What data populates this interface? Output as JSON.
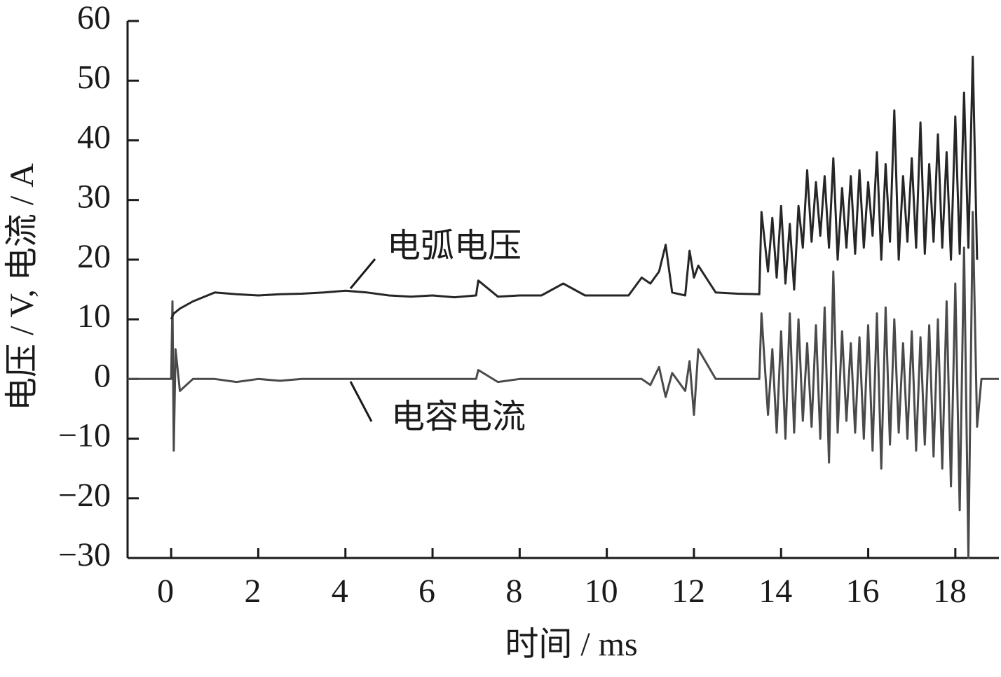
{
  "chart_data": {
    "type": "line",
    "xlabel": "时间 / ms",
    "ylabel": "电压 / V, 电流 / A",
    "x": [
      -1,
      -0.5,
      0,
      0.03,
      0.06,
      0.1,
      0.2,
      0.5,
      1,
      1.5,
      2,
      2.5,
      3,
      3.5,
      4,
      4.5,
      5,
      5.5,
      6,
      6.5,
      7,
      7.05,
      7.5,
      8,
      8.5,
      9,
      9.5,
      10,
      10.5,
      10.8,
      11,
      11.2,
      11.35,
      11.5,
      11.8,
      11.9,
      12,
      12.1,
      12.5,
      13,
      13.5,
      13.55,
      13.7,
      13.8,
      13.9,
      14,
      14.1,
      14.2,
      14.3,
      14.4,
      14.5,
      14.6,
      14.7,
      14.8,
      14.9,
      15,
      15.1,
      15.2,
      15.3,
      15.4,
      15.5,
      15.6,
      15.7,
      15.8,
      15.9,
      16,
      16.1,
      16.2,
      16.3,
      16.4,
      16.5,
      16.6,
      16.7,
      16.8,
      16.9,
      17,
      17.1,
      17.2,
      17.3,
      17.4,
      17.5,
      17.6,
      17.7,
      17.8,
      17.9,
      18,
      18.1,
      18.2,
      18.3,
      18.4,
      18.5,
      18.6,
      19
    ],
    "series": [
      {
        "name": "电弧电压",
        "color": "#262626",
        "values": [
          null,
          null,
          10,
          10.5,
          11,
          11.2,
          11.8,
          13,
          14.5,
          14.2,
          14,
          14.2,
          14.3,
          14.5,
          14.8,
          14.5,
          14,
          13.8,
          14,
          13.7,
          14,
          16.5,
          13.8,
          14,
          14,
          16,
          14,
          14,
          14,
          17,
          16,
          18,
          22.5,
          14.5,
          14,
          21.5,
          17,
          19,
          14.5,
          14.3,
          14.2,
          28,
          18,
          27,
          17,
          29,
          16,
          26,
          15,
          29,
          22,
          35,
          23,
          33,
          24,
          34,
          22,
          37,
          20,
          32,
          22,
          34,
          21,
          35,
          22,
          33,
          24,
          38,
          20,
          36,
          23,
          45,
          20,
          34,
          23,
          37,
          22,
          43,
          21,
          36,
          23,
          41,
          22,
          38,
          20,
          44,
          21,
          48,
          22,
          54,
          20,
          null,
          null
        ]
      },
      {
        "name": "电容电流",
        "color": "#4a4a4a",
        "values": [
          0,
          0,
          0,
          13,
          -12,
          5,
          -2,
          0,
          0,
          -0.5,
          0,
          -0.3,
          0,
          0,
          0,
          0,
          0,
          0,
          0,
          0,
          0,
          1.5,
          -0.5,
          0,
          0,
          0,
          0,
          0,
          0,
          0,
          -1,
          2,
          -3,
          1,
          -2,
          3,
          -6,
          5,
          0,
          0,
          0,
          11,
          -6,
          5,
          -9,
          8,
          -10,
          11,
          -9,
          10,
          -7,
          6,
          -8,
          9,
          -10,
          12,
          -14,
          18,
          -9,
          8,
          -7,
          6,
          -9,
          7,
          -10,
          9,
          -12,
          11,
          -15,
          12,
          -11,
          10,
          -9,
          6,
          -10,
          8,
          -12,
          7,
          -11,
          9,
          -13,
          10,
          -15,
          13,
          -18,
          16,
          -22,
          22,
          -30,
          28,
          -8,
          0,
          0
        ]
      }
    ],
    "xlim": [
      -1,
      19
    ],
    "ylim": [
      -30,
      60
    ],
    "xticks": [
      0,
      2,
      4,
      6,
      8,
      10,
      12,
      14,
      16,
      18
    ],
    "yticks": [
      {
        "value": -30,
        "label": "−30"
      },
      {
        "value": -20,
        "label": "−20"
      },
      {
        "value": -10,
        "label": "−10"
      },
      0,
      10,
      20,
      30,
      40,
      50,
      60
    ]
  }
}
